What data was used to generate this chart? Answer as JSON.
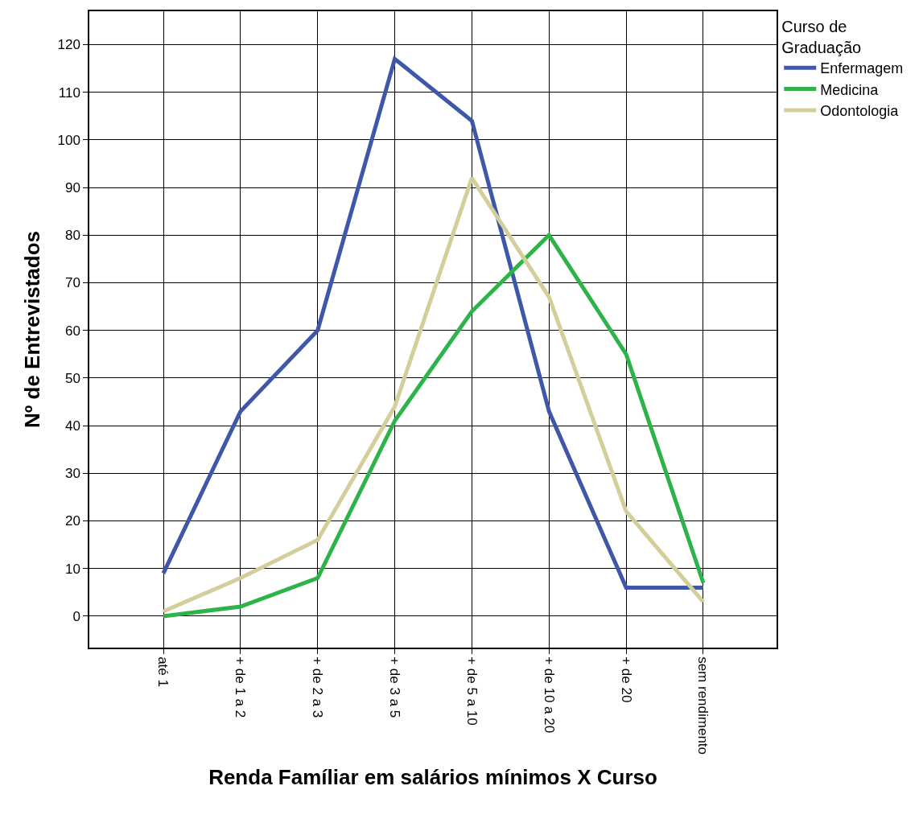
{
  "chart_data": {
    "type": "line",
    "xlabel": "Renda Famíliar em salários mínimos X Curso",
    "ylabel": "Nº de Entrevistados",
    "legend_title": "Curso de Graduação",
    "categories": [
      "até 1",
      "+ de 1 a 2",
      "+ de 2 a 3",
      "+ de 3 a 5",
      "+ de 5 a 10",
      "+ de 10 a 20",
      "+ de 20",
      "sem rendimento"
    ],
    "series": [
      {
        "name": "Enfermagem",
        "color": "#3f57a8",
        "values": [
          9,
          43,
          60,
          117,
          104,
          43,
          6,
          6
        ]
      },
      {
        "name": "Medicina",
        "color": "#2db34a",
        "values": [
          0,
          2,
          8,
          41,
          64,
          80,
          55,
          7
        ]
      },
      {
        "name": "Odontologia",
        "color": "#d4cf9a",
        "values": [
          1,
          8,
          16,
          44,
          92,
          67,
          22,
          3
        ]
      }
    ],
    "ylim": [
      -6.6,
      127
    ],
    "yticks": [
      0,
      10,
      20,
      30,
      40,
      50,
      60,
      70,
      80,
      90,
      100,
      110,
      120
    ],
    "grid": true,
    "legend": "top right",
    "marker": "none",
    "line_style": "solid"
  }
}
